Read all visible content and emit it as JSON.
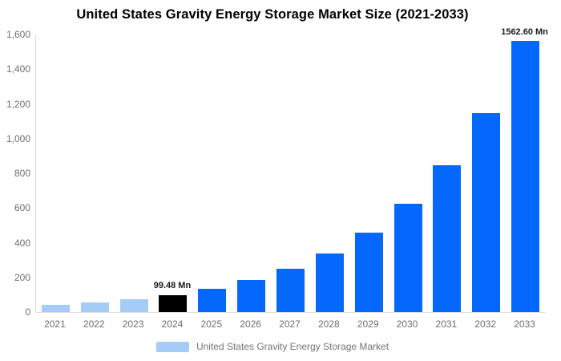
{
  "chart_data": {
    "type": "bar",
    "title": "United States Gravity Energy Storage Market Size (2021-2033)",
    "categories": [
      "2021",
      "2022",
      "2023",
      "2024",
      "2025",
      "2026",
      "2027",
      "2028",
      "2029",
      "2030",
      "2031",
      "2032",
      "2033"
    ],
    "values": [
      39.7,
      53.9,
      73.3,
      99.48,
      135.1,
      183.4,
      249.0,
      338.1,
      459.1,
      623.3,
      846.3,
      1149.0,
      1562.6
    ],
    "bar_colors": [
      "#A5CCF7",
      "#A5CCF7",
      "#A5CCF7",
      "#000000",
      "#0568FD",
      "#0568FD",
      "#0568FD",
      "#0568FD",
      "#0568FD",
      "#0568FD",
      "#0568FD",
      "#0568FD",
      "#0568FD"
    ],
    "xlabel": "",
    "ylabel": "",
    "ylim": [
      0,
      1600
    ],
    "yticks": [
      "0",
      "200",
      "400",
      "600",
      "800",
      "1,000",
      "1,200",
      "1,400",
      "1,600"
    ],
    "grid": false,
    "legend_position": "bottom",
    "annotations": [
      {
        "index": 3,
        "text": "99.48 Mn"
      },
      {
        "index": 12,
        "text": "1562.60 Mn"
      }
    ]
  },
  "legend": {
    "label": "United States Gravity Energy Storage Market",
    "swatch_color": "#A5CCF7"
  },
  "colors": {
    "light_blue": "#A5CCF7",
    "blue": "#0568FD",
    "black": "#000000",
    "axis_line": "#D9D9D9",
    "tick_text": "#6E6E6E",
    "legend_text": "#757575",
    "title_text": "#000000",
    "annotation_text": "#1A1A1A",
    "background": "#FFFFFF"
  }
}
